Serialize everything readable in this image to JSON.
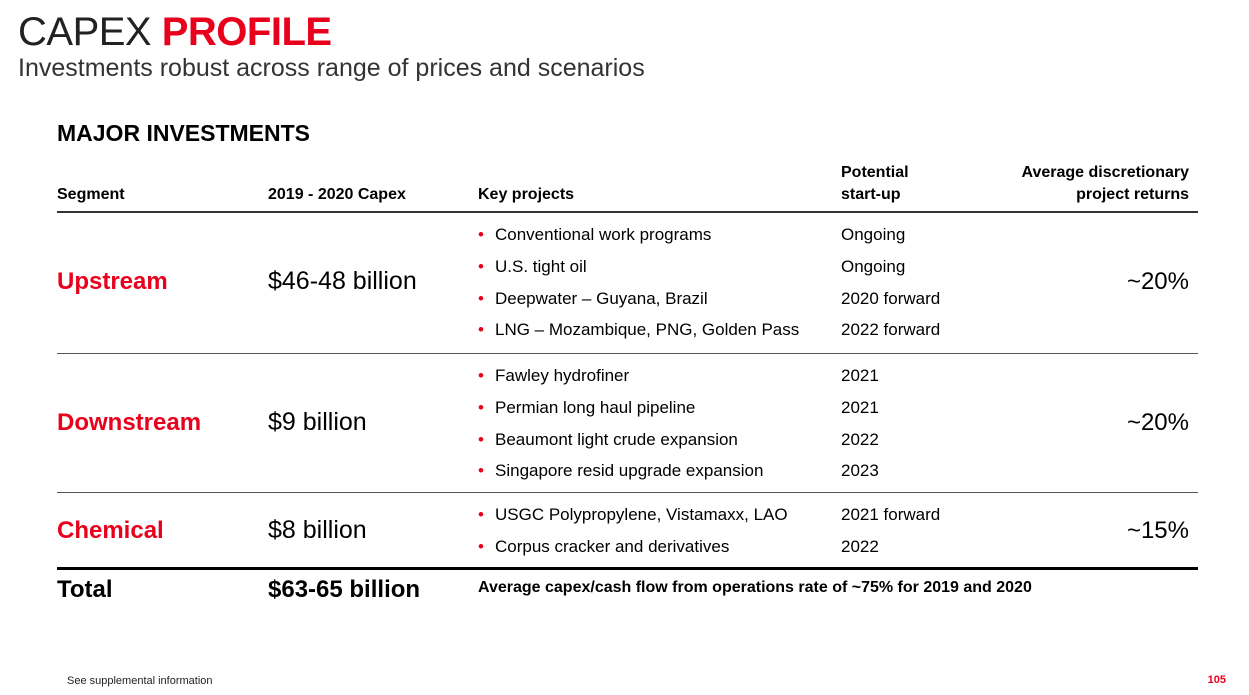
{
  "title": {
    "part1": "CAPEX ",
    "part2": "PROFILE"
  },
  "subtitle": "Investments robust across range of prices and scenarios",
  "section_heading": "MAJOR INVESTMENTS",
  "columns": {
    "segment": "Segment",
    "capex": "2019 - 2020 Capex",
    "projects": "Key projects",
    "startup_line1": "Potential",
    "startup_line2": "start-up",
    "returns_line1": "Average discretionary",
    "returns_line2": "project returns"
  },
  "rows": [
    {
      "segment": "Upstream",
      "capex": "$46-48 billion",
      "returns": "~20%",
      "projects": [
        {
          "name": "Conventional work programs",
          "start": "Ongoing"
        },
        {
          "name": "U.S. tight oil",
          "start": "Ongoing"
        },
        {
          "name": "Deepwater – Guyana, Brazil",
          "start": "2020 forward"
        },
        {
          "name": "LNG – Mozambique, PNG, Golden Pass",
          "start": "2022 forward"
        }
      ]
    },
    {
      "segment": "Downstream",
      "capex": "$9 billion",
      "returns": "~20%",
      "projects": [
        {
          "name": "Fawley hydrofiner",
          "start": "2021"
        },
        {
          "name": "Permian long haul pipeline",
          "start": "2021"
        },
        {
          "name": "Beaumont light crude expansion",
          "start": "2022"
        },
        {
          "name": "Singapore resid upgrade expansion",
          "start": "2023"
        }
      ]
    },
    {
      "segment": "Chemical",
      "capex": "$8 billion",
      "returns": "~15%",
      "projects": [
        {
          "name": "USGC Polypropylene, Vistamaxx, LAO",
          "start": "2021 forward"
        },
        {
          "name": "Corpus cracker and derivatives",
          "start": "2022"
        }
      ]
    }
  ],
  "total": {
    "label": "Total",
    "capex": "$63-65 billion",
    "note": "Average capex/cash flow from operations rate of ~75% for 2019 and 2020"
  },
  "bullet_glyph": "•",
  "footer": "See supplemental information",
  "page_number": "105",
  "colors": {
    "accent": "#e8001c",
    "text": "#000000"
  }
}
